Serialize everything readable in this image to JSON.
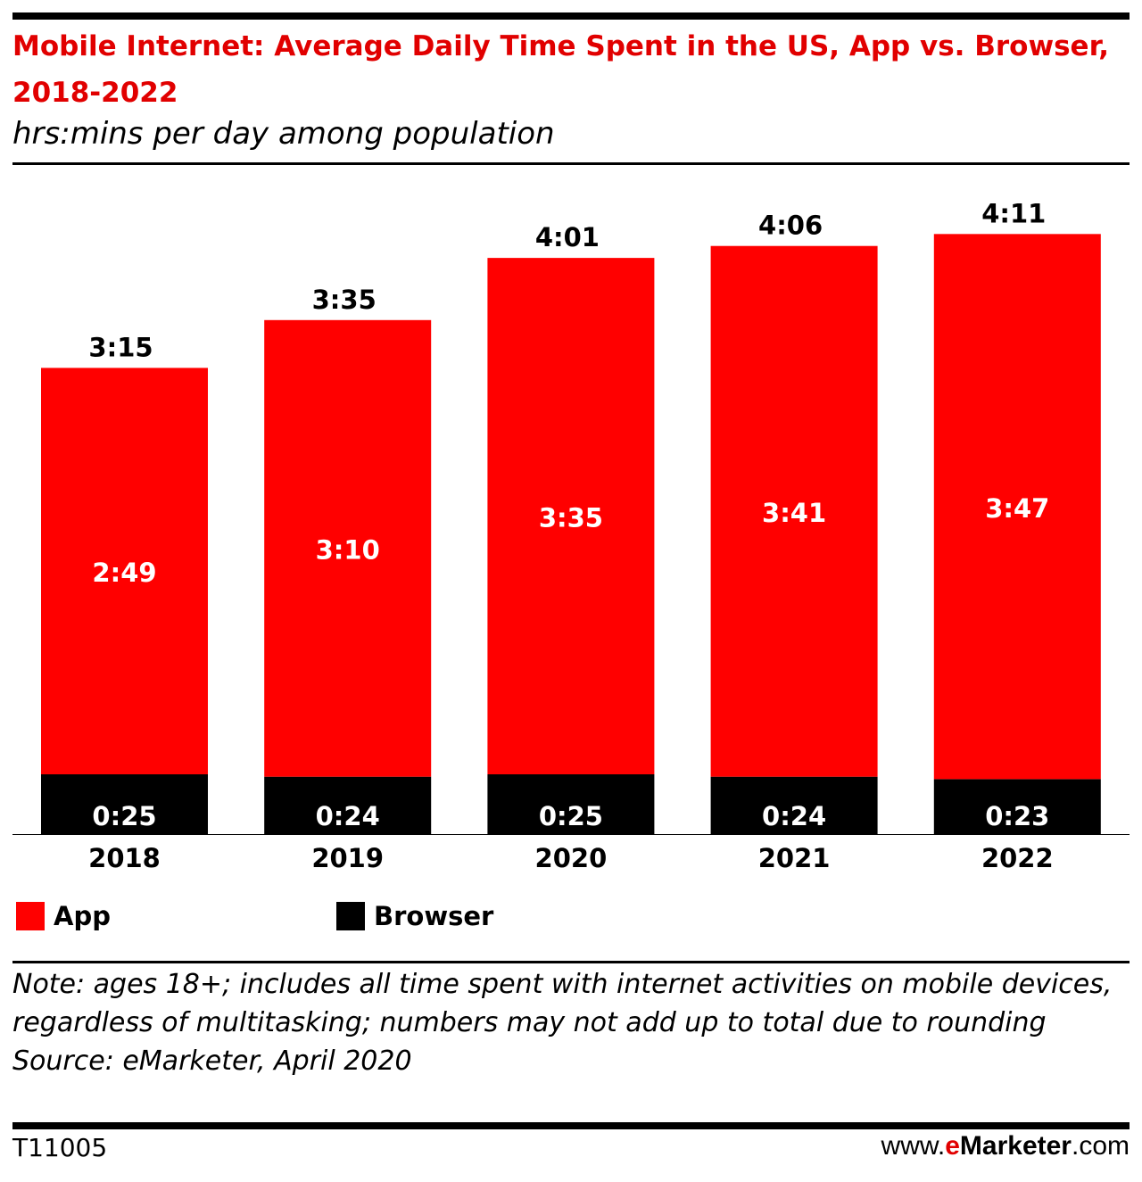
{
  "chart_data": {
    "type": "bar",
    "stacked": true,
    "title": "Mobile Internet: Average Daily Time Spent in the US, App vs. Browser, 2018-2022",
    "subtitle": "hrs:mins per day among population",
    "categories": [
      "2018",
      "2019",
      "2020",
      "2021",
      "2022"
    ],
    "series": [
      {
        "name": "App",
        "color": "#ff0000",
        "values_minutes": [
          169,
          190,
          215,
          221,
          227
        ],
        "labels": [
          "2:49",
          "3:10",
          "3:35",
          "3:41",
          "3:47"
        ]
      },
      {
        "name": "Browser",
        "color": "#000000",
        "values_minutes": [
          25,
          24,
          25,
          24,
          23
        ],
        "labels": [
          "0:25",
          "0:24",
          "0:25",
          "0:24",
          "0:23"
        ]
      }
    ],
    "totals_minutes": [
      195,
      215,
      241,
      246,
      251
    ],
    "total_labels": [
      "3:15",
      "3:35",
      "4:01",
      "4:06",
      "4:11"
    ],
    "grid": false,
    "legend": "bottom-left"
  },
  "note": "Note: ages 18+; includes all time spent with internet activities on mobile devices, regardless of multitasking; numbers may not add up to total due to rounding",
  "source": "Source: eMarketer, April 2020",
  "footer": {
    "id": "T11005",
    "url_prefix": "www.",
    "url_brand_e": "e",
    "url_brand_rest": "Marketer",
    "url_suffix": ".com"
  }
}
